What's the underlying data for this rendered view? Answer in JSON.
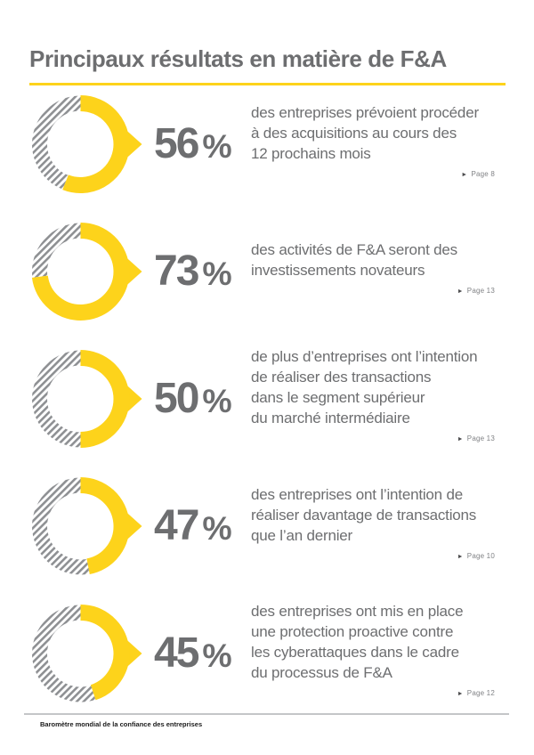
{
  "header": {
    "title": "Principaux résultats en matière de F&A"
  },
  "footer": {
    "label": "Baromètre mondial de la confiance des entreprises"
  },
  "colors": {
    "accent_yellow": "#FDD31B",
    "text_gray": "#6D6E70",
    "hatch_gray": "#8E9093",
    "page_ref_gray": "#808285"
  },
  "icons": {
    "page_ref_marker": "►"
  },
  "chart_data": {
    "type": "donut",
    "unit": "%",
    "start_angle": "top",
    "direction": "clockwise",
    "filled_style": "solid yellow arc with right-pointing arrow at 3 o'clock",
    "remainder_style": "gray diagonal hatch stripes",
    "items": [
      {
        "value": 56,
        "description": "des entreprises prévoient procéder\nà des acquisitions au cours des\n12 prochains mois",
        "page_ref": "Page 8"
      },
      {
        "value": 73,
        "description": "des activités de F&A seront des\ninvestissements novateurs",
        "page_ref": "Page 13"
      },
      {
        "value": 50,
        "description": "de plus d’entreprises ont l’intention\nde réaliser des transactions\ndans le segment supérieur\ndu marché intermédiaire",
        "page_ref": "Page 13"
      },
      {
        "value": 47,
        "description": "des entreprises ont l’intention de\nréaliser davantage de transactions\nque l’an dernier",
        "page_ref": "Page 10"
      },
      {
        "value": 45,
        "description": "des entreprises ont mis en place\nune protection proactive contre\nles cyberattaques dans le cadre\ndu processus de F&A",
        "page_ref": "Page 12"
      }
    ]
  }
}
